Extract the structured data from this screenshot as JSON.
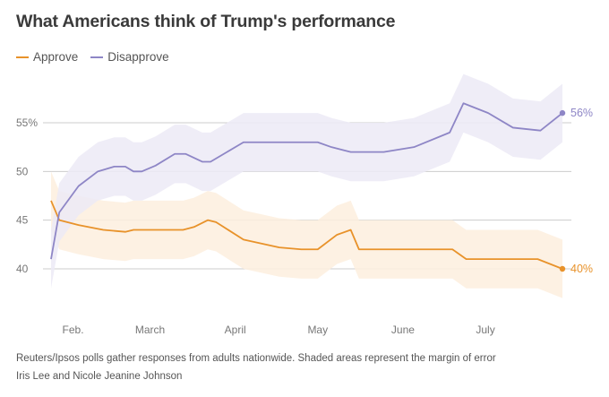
{
  "title": "What Americans think of Trump's performance",
  "legend": {
    "approve_label": "Approve",
    "disapprove_label": "Disapprove"
  },
  "colors": {
    "approve": "#e8922a",
    "disapprove": "#8e86c6",
    "approve_band": "#fdeede",
    "disapprove_band": "#eceaf6",
    "grid": "#cccccc"
  },
  "footer": {
    "note": "Reuters/Ipsos polls gather responses from adults nationwide. Shaded areas represent the margin of error",
    "credit": "Iris Lee and Nicole Jeanine Johnson"
  },
  "chart_data": {
    "type": "line",
    "title": "What Americans think of Trump's performance",
    "xlabel": "",
    "ylabel": "",
    "ylim": [
      35.5,
      59
    ],
    "xlim": [
      "2025-01-24",
      "2025-07-29"
    ],
    "y_ticks": [
      40,
      45,
      50,
      55
    ],
    "y_tick_labels": [
      "40",
      "45",
      "50",
      "55%"
    ],
    "x_ticks": [
      {
        "label": "Feb.",
        "date": "2025-02-01"
      },
      {
        "label": "March",
        "date": "2025-03-01"
      },
      {
        "label": "April",
        "date": "2025-04-01"
      },
      {
        "label": "May",
        "date": "2025-05-01"
      },
      {
        "label": "June",
        "date": "2025-06-01"
      },
      {
        "label": "July",
        "date": "2025-07-01"
      }
    ],
    "grid": true,
    "legend_position": "top-left",
    "margin_of_error": 3,
    "series": [
      {
        "name": "Approve",
        "color": "#e8922a",
        "end_label": "40%",
        "points": [
          [
            "2025-01-24",
            47
          ],
          [
            "2025-01-27",
            45
          ],
          [
            "2025-02-03",
            44.5
          ],
          [
            "2025-02-12",
            44
          ],
          [
            "2025-02-20",
            43.8
          ],
          [
            "2025-02-23",
            44
          ],
          [
            "2025-03-06",
            44
          ],
          [
            "2025-03-13",
            44
          ],
          [
            "2025-03-17",
            44.3
          ],
          [
            "2025-03-22",
            45
          ],
          [
            "2025-03-25",
            44.8
          ],
          [
            "2025-04-04",
            43
          ],
          [
            "2025-04-17",
            42.2
          ],
          [
            "2025-04-25",
            42
          ],
          [
            "2025-05-01",
            42
          ],
          [
            "2025-05-08",
            43.5
          ],
          [
            "2025-05-13",
            44
          ],
          [
            "2025-05-16",
            42
          ],
          [
            "2025-05-29",
            42
          ],
          [
            "2025-06-15",
            42
          ],
          [
            "2025-06-19",
            42
          ],
          [
            "2025-06-24",
            41
          ],
          [
            "2025-07-05",
            41
          ],
          [
            "2025-07-20",
            41
          ],
          [
            "2025-07-29",
            40
          ]
        ]
      },
      {
        "name": "Disapprove",
        "color": "#8e86c6",
        "end_label": "56%",
        "points": [
          [
            "2025-01-24",
            41
          ],
          [
            "2025-01-27",
            45.8
          ],
          [
            "2025-02-03",
            48.5
          ],
          [
            "2025-02-10",
            50
          ],
          [
            "2025-02-16",
            50.5
          ],
          [
            "2025-02-20",
            50.5
          ],
          [
            "2025-02-23",
            50
          ],
          [
            "2025-02-26",
            50
          ],
          [
            "2025-03-03",
            50.6
          ],
          [
            "2025-03-10",
            51.8
          ],
          [
            "2025-03-14",
            51.8
          ],
          [
            "2025-03-20",
            51
          ],
          [
            "2025-03-23",
            51
          ],
          [
            "2025-03-29",
            52
          ],
          [
            "2025-04-04",
            53
          ],
          [
            "2025-04-20",
            53
          ],
          [
            "2025-05-01",
            53
          ],
          [
            "2025-05-06",
            52.5
          ],
          [
            "2025-05-13",
            52
          ],
          [
            "2025-05-25",
            52
          ],
          [
            "2025-06-05",
            52.5
          ],
          [
            "2025-06-18",
            54
          ],
          [
            "2025-06-23",
            57
          ],
          [
            "2025-07-02",
            56
          ],
          [
            "2025-07-11",
            54.5
          ],
          [
            "2025-07-21",
            54.2
          ],
          [
            "2025-07-29",
            56
          ]
        ]
      }
    ]
  }
}
